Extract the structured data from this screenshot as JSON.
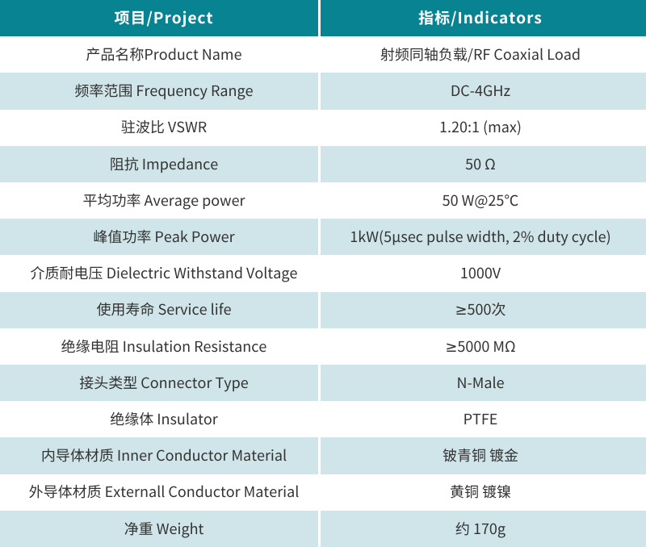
{
  "colors": {
    "header_bg": "#088391",
    "header_text": "#ffffff",
    "row_bg": "#ffffff",
    "row_alt_bg": "#d0e5e9",
    "body_text": "#333333",
    "divider": "#ffffff"
  },
  "table": {
    "header": {
      "project_label": "项目/Project",
      "indicators_label": "指标/Indicators"
    },
    "rows": [
      {
        "project": "产品名称Product Name",
        "indicator": "射频同轴负载/RF Coaxial Load"
      },
      {
        "project": "频率范围 Frequency Range",
        "indicator": "DC-4GHz"
      },
      {
        "project": "驻波比 VSWR",
        "indicator": "1.20:1 (max)"
      },
      {
        "project": "阻抗 Impedance",
        "indicator": "50 Ω"
      },
      {
        "project": "平均功率 Average power",
        "indicator": "50 W@25℃"
      },
      {
        "project": "峰值功率 Peak Power",
        "indicator": "1kW(5μsec pulse width, 2% duty cycle)"
      },
      {
        "project": "介质耐电压 Dielectric Withstand Voltage",
        "indicator": "1000V"
      },
      {
        "project": "使用寿命 Service life",
        "indicator": "≥500次"
      },
      {
        "project": "绝缘电阻 Insulation Resistance",
        "indicator": "≥5000 MΩ"
      },
      {
        "project": "接头类型 Connector Type",
        "indicator": "N-Male"
      },
      {
        "project": "绝缘体 Insulator",
        "indicator": "PTFE"
      },
      {
        "project": "内导体材质 Inner Conductor Material",
        "indicator": "铍青铜 镀金"
      },
      {
        "project": "外导体材质 Externall Conductor Material",
        "indicator": "黄铜 镀镍"
      },
      {
        "project": "净重 Weight",
        "indicator": "约 170g"
      }
    ]
  }
}
